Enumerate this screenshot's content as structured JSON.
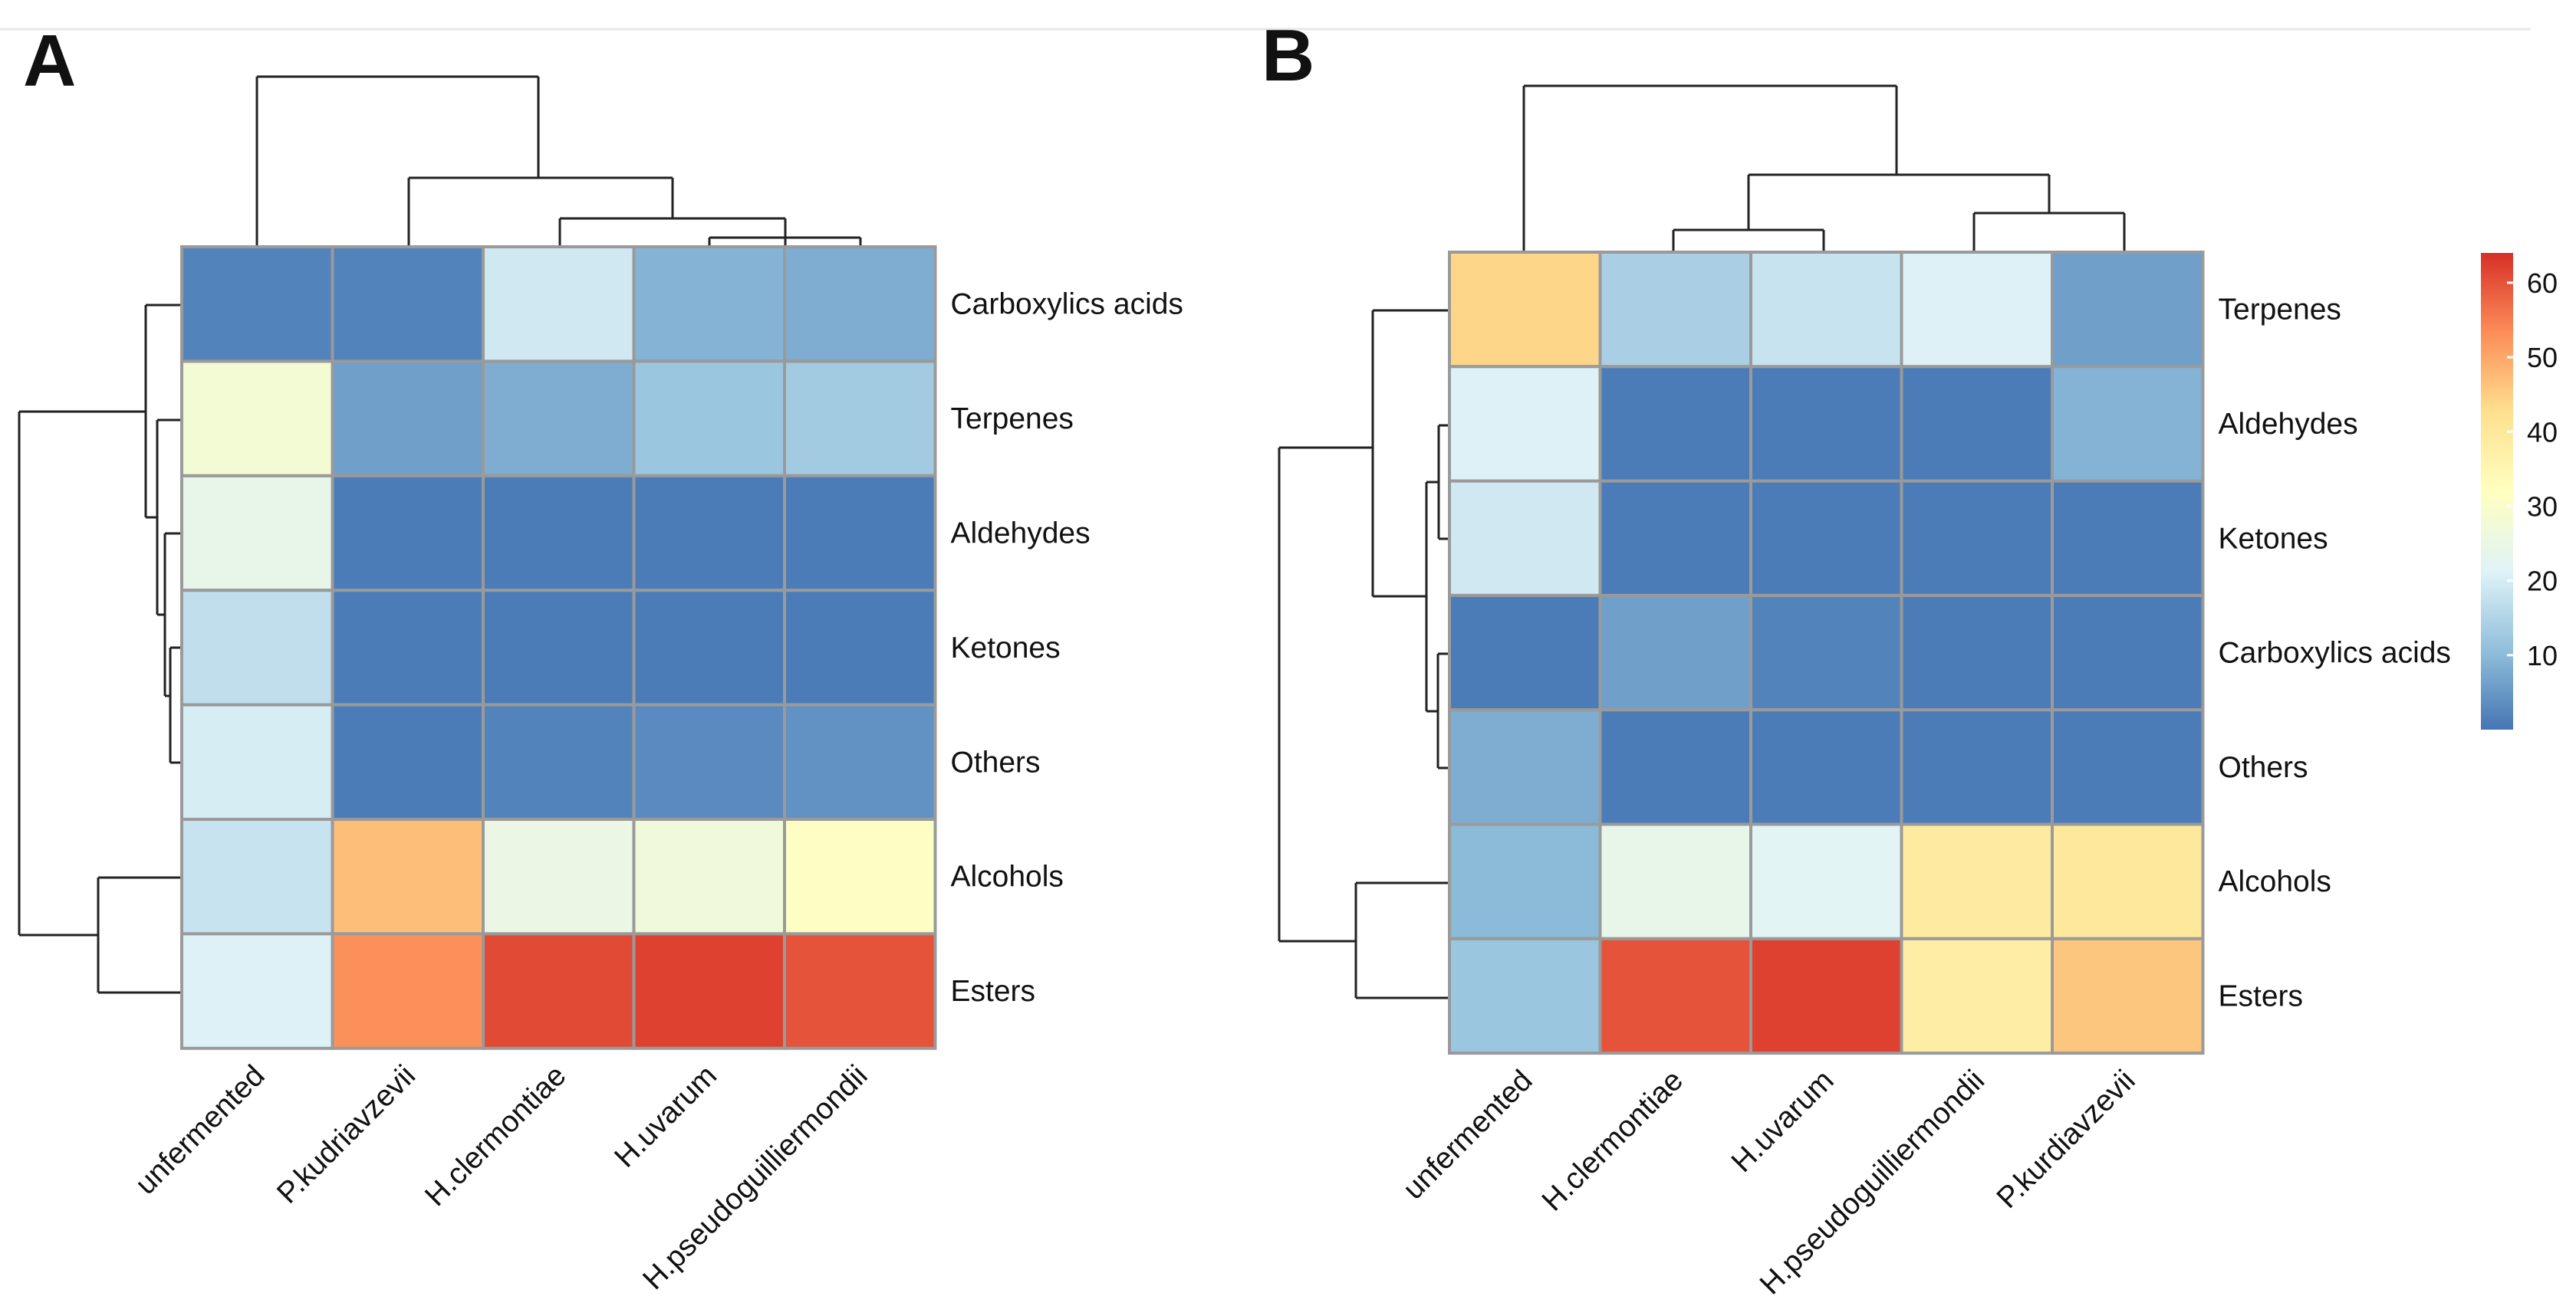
{
  "chart_data": [
    {
      "type": "heatmap",
      "panel": "A",
      "rows": [
        "Carboxylics acids",
        "Terpenes",
        "Aldehydes",
        "Ketones",
        "Others",
        "Alcohols",
        "Esters"
      ],
      "columns": [
        "unfermented",
        "P.kudriavzevii",
        "H.clermontiae",
        "H.uvarum",
        "H.pseudoguilliermondii"
      ],
      "values": [
        [
          2,
          2,
          19,
          9,
          8
        ],
        [
          28,
          6,
          8,
          12,
          13
        ],
        [
          24,
          1,
          1,
          1,
          1
        ],
        [
          17,
          1,
          1,
          1,
          1
        ],
        [
          20,
          1,
          2,
          3,
          4
        ],
        [
          18,
          47,
          25,
          27,
          31
        ],
        [
          21,
          53,
          61,
          62,
          60
        ]
      ]
    },
    {
      "type": "heatmap",
      "panel": "B",
      "rows": [
        "Terpenes",
        "Aldehydes",
        "Ketones",
        "Carboxylics acids",
        "Others",
        "Alcohols",
        "Esters"
      ],
      "columns": [
        "unfermented",
        "H.clermontiae",
        "H.uvarum",
        "H.pseudoguilliermondii",
        "P.kurdiavzevii"
      ],
      "values": [
        [
          44,
          14,
          18,
          21,
          6
        ],
        [
          21,
          1,
          1,
          1,
          9
        ],
        [
          19,
          1,
          1,
          1,
          1
        ],
        [
          1,
          6,
          2,
          1,
          1
        ],
        [
          8,
          1,
          1,
          1,
          1
        ],
        [
          10,
          24,
          22,
          39,
          40
        ],
        [
          12,
          60,
          62,
          38,
          46
        ]
      ],
      "colorbar": {
        "ticks": [
          10,
          20,
          30,
          40,
          50,
          60
        ],
        "range": [
          0,
          64
        ]
      }
    }
  ],
  "colors": {
    "scale": [
      "#4575b4",
      "#91bfdb",
      "#e0f3f8",
      "#ffffbf",
      "#fee090",
      "#fc8d59",
      "#d73027"
    ]
  }
}
